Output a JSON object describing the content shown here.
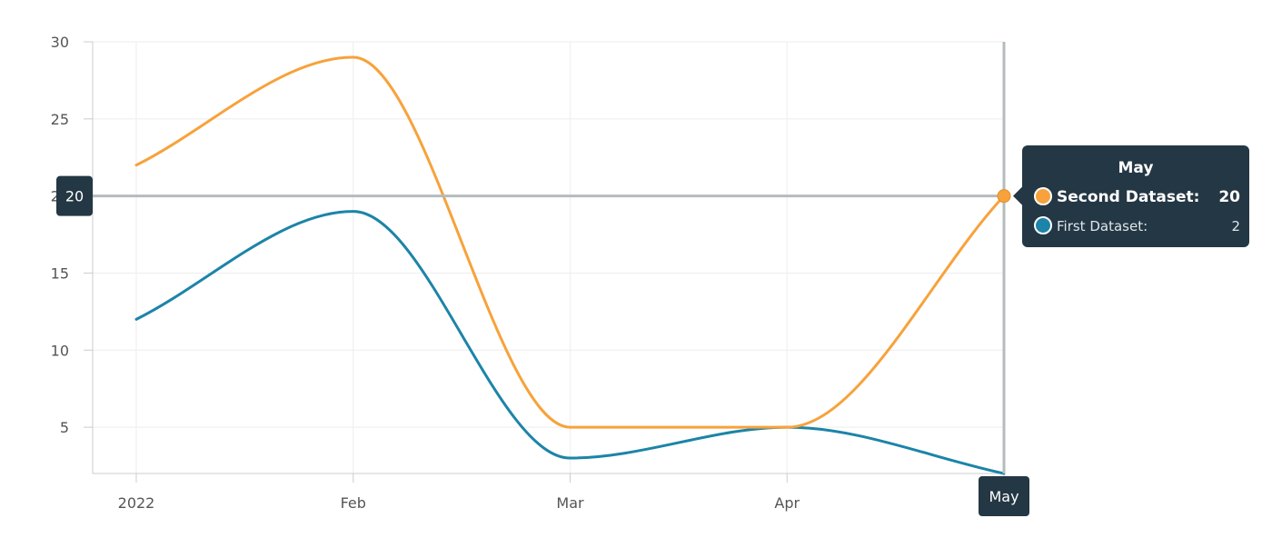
{
  "chart_data": {
    "type": "line",
    "categories": [
      "2022",
      "Feb",
      "Mar",
      "Apr",
      "May"
    ],
    "series": [
      {
        "name": "Second Dataset",
        "values": [
          22,
          29,
          5,
          5,
          20
        ],
        "color": "#f7a23b"
      },
      {
        "name": "First Dataset",
        "values": [
          12,
          19,
          3,
          5,
          2
        ],
        "color": "#1c84a8"
      }
    ],
    "ylim": [
      2,
      30
    ],
    "yticks": [
      5,
      10,
      15,
      20,
      25,
      30
    ],
    "grid": true,
    "title": "",
    "xlabel": "",
    "ylabel": ""
  },
  "crosshair": {
    "x_category": "May",
    "y_value": 20,
    "y_badge_label": "20",
    "x_badge_label": "May"
  },
  "tooltip": {
    "title": "May",
    "rows": [
      {
        "label": "Second Dataset:",
        "value": "20",
        "color": "#f7a23b",
        "bold": true
      },
      {
        "label": "First Dataset:",
        "value": "2",
        "color": "#1c84a8",
        "bold": false
      }
    ],
    "background": "#243744"
  }
}
